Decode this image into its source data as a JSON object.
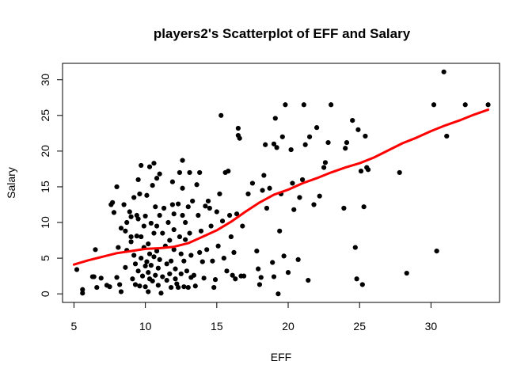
{
  "chart_data": {
    "type": "scatter",
    "title": "players2's Scatterplot of EFF and Salary",
    "xlabel": "EFF",
    "ylabel": "Salary",
    "xlim": [
      4.2,
      34.8
    ],
    "ylim": [
      -1.2,
      32.3
    ],
    "x_ticks": [
      5,
      10,
      15,
      20,
      25,
      30
    ],
    "y_ticks": [
      0,
      5,
      10,
      15,
      20,
      25,
      30
    ],
    "grid": false,
    "legend": "none",
    "colors": {
      "points": "#000000",
      "smooth_line": "#ff0000"
    },
    "points": [
      [
        5.2,
        3.4
      ],
      [
        5.6,
        0.1
      ],
      [
        5.6,
        0.6
      ],
      [
        6.3,
        2.4
      ],
      [
        6.4,
        2.4
      ],
      [
        6.5,
        6.2
      ],
      [
        6.6,
        0.9
      ],
      [
        6.9,
        2.2
      ],
      [
        7.3,
        1.2
      ],
      [
        7.5,
        1.0
      ],
      [
        7.6,
        12.5
      ],
      [
        7.7,
        12.8
      ],
      [
        7.8,
        11.4
      ],
      [
        8.0,
        15.0
      ],
      [
        8.0,
        2.3
      ],
      [
        8.1,
        6.5
      ],
      [
        8.2,
        1.3
      ],
      [
        8.3,
        9.2
      ],
      [
        8.3,
        0.3
      ],
      [
        8.5,
        12.5
      ],
      [
        8.6,
        8.8
      ],
      [
        8.6,
        3.7
      ],
      [
        8.7,
        10.0
      ],
      [
        8.7,
        6.1
      ],
      [
        8.9,
        11.5
      ],
      [
        9.0,
        10.8
      ],
      [
        9.0,
        8.0
      ],
      [
        9.0,
        7.3
      ],
      [
        9.1,
        2.1
      ],
      [
        9.2,
        13.5
      ],
      [
        9.2,
        5.4
      ],
      [
        9.3,
        4.2
      ],
      [
        9.3,
        1.3
      ],
      [
        9.4,
        11.0
      ],
      [
        9.4,
        8.1
      ],
      [
        9.5,
        16.0
      ],
      [
        9.5,
        10.5
      ],
      [
        9.5,
        3.2
      ],
      [
        9.6,
        14.0
      ],
      [
        9.6,
        1.1
      ],
      [
        9.7,
        18.0
      ],
      [
        9.7,
        8.0
      ],
      [
        9.7,
        5.0
      ],
      [
        9.8,
        2.5
      ],
      [
        9.9,
        9.5
      ],
      [
        9.9,
        6.5
      ],
      [
        10.0,
        10.9
      ],
      [
        10.0,
        3.9
      ],
      [
        10.0,
        1.0
      ],
      [
        10.1,
        13.8
      ],
      [
        10.1,
        4.5
      ],
      [
        10.2,
        7.0
      ],
      [
        10.2,
        3.0
      ],
      [
        10.2,
        0.3
      ],
      [
        10.3,
        17.8
      ],
      [
        10.3,
        5.6
      ],
      [
        10.3,
        2.1
      ],
      [
        10.4,
        9.9
      ],
      [
        10.4,
        4.0
      ],
      [
        10.5,
        15.2
      ],
      [
        10.5,
        1.8
      ],
      [
        10.6,
        18.3
      ],
      [
        10.6,
        8.5
      ],
      [
        10.6,
        5.2
      ],
      [
        10.7,
        12.2
      ],
      [
        10.7,
        2.6
      ],
      [
        10.8,
        16.2
      ],
      [
        10.8,
        9.5
      ],
      [
        10.8,
        6.0
      ],
      [
        10.9,
        3.6
      ],
      [
        10.9,
        1.2
      ],
      [
        11.0,
        16.8
      ],
      [
        11.0,
        11.0
      ],
      [
        11.0,
        4.8
      ],
      [
        11.1,
        0.1
      ],
      [
        11.2,
        8.5
      ],
      [
        11.2,
        2.4
      ],
      [
        11.3,
        12.0
      ],
      [
        11.4,
        6.7
      ],
      [
        11.5,
        1.9
      ],
      [
        11.5,
        4.2
      ],
      [
        11.6,
        10.0
      ],
      [
        11.7,
        7.5
      ],
      [
        11.7,
        2.8
      ],
      [
        11.8,
        4.6
      ],
      [
        11.8,
        0.9
      ],
      [
        11.9,
        15.7
      ],
      [
        11.9,
        12.5
      ],
      [
        12.0,
        11.2
      ],
      [
        12.0,
        9.0
      ],
      [
        12.0,
        6.2
      ],
      [
        12.1,
        3.5
      ],
      [
        12.1,
        2.1
      ],
      [
        12.2,
        1.4
      ],
      [
        12.3,
        12.6
      ],
      [
        12.3,
        0.9
      ],
      [
        12.4,
        17.0
      ],
      [
        12.4,
        8.0
      ],
      [
        12.5,
        5.6
      ],
      [
        12.5,
        2.8
      ],
      [
        12.6,
        18.7
      ],
      [
        12.6,
        14.8
      ],
      [
        12.6,
        11.0
      ],
      [
        12.7,
        4.6
      ],
      [
        12.7,
        1.0
      ],
      [
        12.8,
        10.0
      ],
      [
        12.8,
        7.6
      ],
      [
        12.9,
        3.2
      ],
      [
        13.0,
        12.2
      ],
      [
        13.0,
        0.9
      ],
      [
        13.1,
        17.0
      ],
      [
        13.1,
        8.5
      ],
      [
        13.2,
        5.4
      ],
      [
        13.2,
        2.3
      ],
      [
        13.3,
        13.0
      ],
      [
        13.4,
        2.6
      ],
      [
        13.5,
        1.1
      ],
      [
        13.6,
        15.3
      ],
      [
        13.7,
        11.0
      ],
      [
        13.8,
        17.0
      ],
      [
        13.8,
        5.8
      ],
      [
        13.9,
        8.8
      ],
      [
        14.0,
        4.5
      ],
      [
        14.1,
        2.2
      ],
      [
        14.2,
        12.3
      ],
      [
        14.3,
        6.2
      ],
      [
        14.4,
        13.0
      ],
      [
        14.5,
        12.0
      ],
      [
        14.6,
        9.5
      ],
      [
        14.7,
        4.6
      ],
      [
        14.8,
        0.9
      ],
      [
        14.9,
        2.0
      ],
      [
        15.0,
        11.5
      ],
      [
        15.1,
        6.7
      ],
      [
        15.2,
        14.0
      ],
      [
        15.3,
        25.0
      ],
      [
        15.4,
        10.2
      ],
      [
        15.5,
        5.0
      ],
      [
        15.6,
        17.0
      ],
      [
        15.7,
        3.2
      ],
      [
        15.8,
        17.2
      ],
      [
        15.9,
        11.0
      ],
      [
        16.0,
        8.0
      ],
      [
        16.1,
        2.6
      ],
      [
        16.2,
        5.8
      ],
      [
        16.3,
        2.1
      ],
      [
        16.4,
        11.2
      ],
      [
        16.5,
        23.2
      ],
      [
        16.5,
        22.2
      ],
      [
        16.6,
        21.8
      ],
      [
        16.7,
        2.5
      ],
      [
        16.8,
        9.5
      ],
      [
        16.9,
        2.5
      ],
      [
        17.2,
        14.0
      ],
      [
        17.5,
        15.5
      ],
      [
        17.8,
        6.0
      ],
      [
        17.9,
        3.5
      ],
      [
        18.0,
        1.3
      ],
      [
        18.1,
        2.3
      ],
      [
        18.2,
        14.5
      ],
      [
        18.3,
        16.6
      ],
      [
        18.4,
        20.9
      ],
      [
        18.5,
        12.0
      ],
      [
        18.7,
        14.8
      ],
      [
        18.9,
        4.4
      ],
      [
        19.0,
        21.0
      ],
      [
        19.0,
        2.4
      ],
      [
        19.1,
        24.6
      ],
      [
        19.2,
        20.5
      ],
      [
        19.3,
        0.0
      ],
      [
        19.4,
        8.8
      ],
      [
        19.5,
        14.0
      ],
      [
        19.6,
        22.0
      ],
      [
        19.7,
        5.3
      ],
      [
        19.8,
        26.5
      ],
      [
        20.0,
        3.0
      ],
      [
        20.2,
        20.2
      ],
      [
        20.3,
        15.5
      ],
      [
        20.4,
        11.8
      ],
      [
        20.7,
        4.8
      ],
      [
        20.8,
        13.5
      ],
      [
        21.0,
        16.0
      ],
      [
        21.1,
        26.5
      ],
      [
        21.2,
        20.9
      ],
      [
        21.4,
        1.9
      ],
      [
        21.5,
        22.0
      ],
      [
        21.8,
        12.5
      ],
      [
        22.0,
        23.3
      ],
      [
        22.2,
        13.7
      ],
      [
        22.5,
        17.7
      ],
      [
        22.6,
        18.4
      ],
      [
        22.8,
        21.2
      ],
      [
        23.0,
        26.5
      ],
      [
        23.9,
        12.0
      ],
      [
        24.0,
        20.4
      ],
      [
        24.1,
        21.2
      ],
      [
        24.5,
        24.3
      ],
      [
        24.7,
        6.5
      ],
      [
        24.8,
        2.1
      ],
      [
        24.9,
        23.0
      ],
      [
        25.1,
        17.2
      ],
      [
        25.2,
        1.3
      ],
      [
        25.3,
        12.2
      ],
      [
        25.4,
        22.1
      ],
      [
        25.5,
        17.7
      ],
      [
        25.6,
        17.4
      ],
      [
        27.8,
        17.0
      ],
      [
        28.3,
        2.9
      ],
      [
        30.2,
        26.5
      ],
      [
        30.4,
        6.0
      ],
      [
        30.9,
        31.1
      ],
      [
        31.1,
        22.1
      ],
      [
        32.4,
        26.5
      ],
      [
        34.0,
        26.5
      ]
    ],
    "smooth_line": [
      [
        5.0,
        4.1
      ],
      [
        6.0,
        4.7
      ],
      [
        7.0,
        5.2
      ],
      [
        8.0,
        5.7
      ],
      [
        9.0,
        6.0
      ],
      [
        10.0,
        6.3
      ],
      [
        11.0,
        6.4
      ],
      [
        12.0,
        6.6
      ],
      [
        13.0,
        7.1
      ],
      [
        14.0,
        8.0
      ],
      [
        15.0,
        8.9
      ],
      [
        16.0,
        10.1
      ],
      [
        17.0,
        11.5
      ],
      [
        18.0,
        12.8
      ],
      [
        19.0,
        13.9
      ],
      [
        20.0,
        14.6
      ],
      [
        21.0,
        15.5
      ],
      [
        22.0,
        16.2
      ],
      [
        23.0,
        17.0
      ],
      [
        24.0,
        17.7
      ],
      [
        25.0,
        18.3
      ],
      [
        26.0,
        19.1
      ],
      [
        27.0,
        20.1
      ],
      [
        28.0,
        21.1
      ],
      [
        29.0,
        21.9
      ],
      [
        30.0,
        22.8
      ],
      [
        31.0,
        23.6
      ],
      [
        32.0,
        24.3
      ],
      [
        33.0,
        25.1
      ],
      [
        34.0,
        25.8
      ]
    ]
  }
}
